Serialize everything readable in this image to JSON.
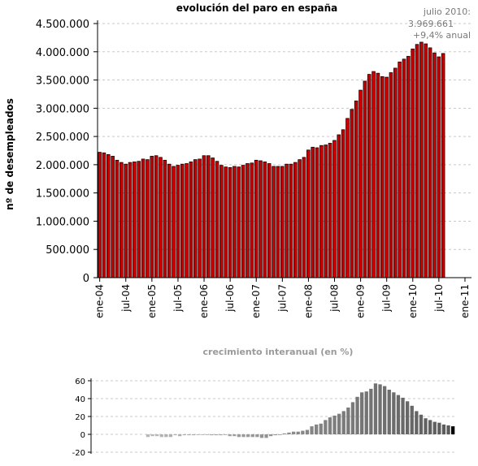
{
  "chart_data": [
    {
      "type": "bar",
      "title": "evolución del paro en españa",
      "ylabel": "nº de desempleados",
      "xlabel": "",
      "ylim": [
        0,
        4500000
      ],
      "yticks": [
        "0",
        "500.000",
        "1.000.000",
        "1.500.000",
        "2.000.000",
        "2.500.000",
        "3.000.000",
        "3.500.000",
        "4.000.000",
        "4.500.000"
      ],
      "xticks": [
        "ene-04",
        "jul-04",
        "ene-05",
        "jul-05",
        "ene-06",
        "jul-06",
        "ene-07",
        "jul-07",
        "ene-08",
        "jul-08",
        "ene-09",
        "jul-09",
        "ene-10",
        "jul-10",
        "ene-11"
      ],
      "grid": true,
      "bar_color": "#cc0000",
      "annotation": [
        "julio 2010:",
        "3.969.661",
        "+9,4% anual"
      ],
      "series": [
        {
          "values": [
            2220000,
            2210000,
            2180000,
            2150000,
            2080000,
            2040000,
            2010000,
            2040000,
            2050000,
            2060000,
            2100000,
            2090000,
            2150000,
            2160000,
            2130000,
            2080000,
            2010000,
            1970000,
            1990000,
            2010000,
            2020000,
            2050000,
            2090000,
            2100000,
            2160000,
            2160000,
            2120000,
            2060000,
            1990000,
            1960000,
            1950000,
            1970000,
            1960000,
            1990000,
            2020000,
            2030000,
            2080000,
            2070000,
            2050000,
            2020000,
            1970000,
            1970000,
            1970000,
            2010000,
            2010000,
            2040000,
            2090000,
            2130000,
            2260000,
            2310000,
            2300000,
            2340000,
            2350000,
            2380000,
            2430000,
            2530000,
            2620000,
            2820000,
            2980000,
            3130000,
            3320000,
            3480000,
            3600000,
            3650000,
            3620000,
            3560000,
            3550000,
            3630000,
            3710000,
            3820000,
            3870000,
            3920000,
            4050000,
            4130000,
            4170000,
            4140000,
            4070000,
            3980000,
            3910000,
            3969661
          ]
        }
      ]
    },
    {
      "type": "bar",
      "title": "crecimiento interanual (en %)",
      "ylim": [
        -20,
        60
      ],
      "yticks": [
        "-20",
        "0",
        "20",
        "40",
        "60"
      ],
      "grid": true,
      "series": [
        {
          "values": [
            null,
            null,
            null,
            null,
            null,
            null,
            null,
            null,
            null,
            null,
            null,
            null,
            -3,
            -2,
            -2,
            -3,
            -3,
            -3,
            -1,
            -2,
            -1,
            -1,
            -1,
            0,
            0,
            0,
            -1,
            -1,
            -1,
            0,
            -2,
            -2,
            -3,
            -3,
            -3,
            -3,
            -3,
            -4,
            -4,
            -2,
            -1,
            0,
            1,
            2,
            3,
            3,
            4,
            5,
            9,
            11,
            12,
            16,
            19,
            21,
            23,
            26,
            30,
            36,
            42,
            47,
            48,
            51,
            57,
            56,
            54,
            50,
            47,
            44,
            41,
            37,
            32,
            26,
            22,
            18,
            16,
            14,
            13,
            11,
            10,
            9
          ]
        }
      ]
    }
  ]
}
